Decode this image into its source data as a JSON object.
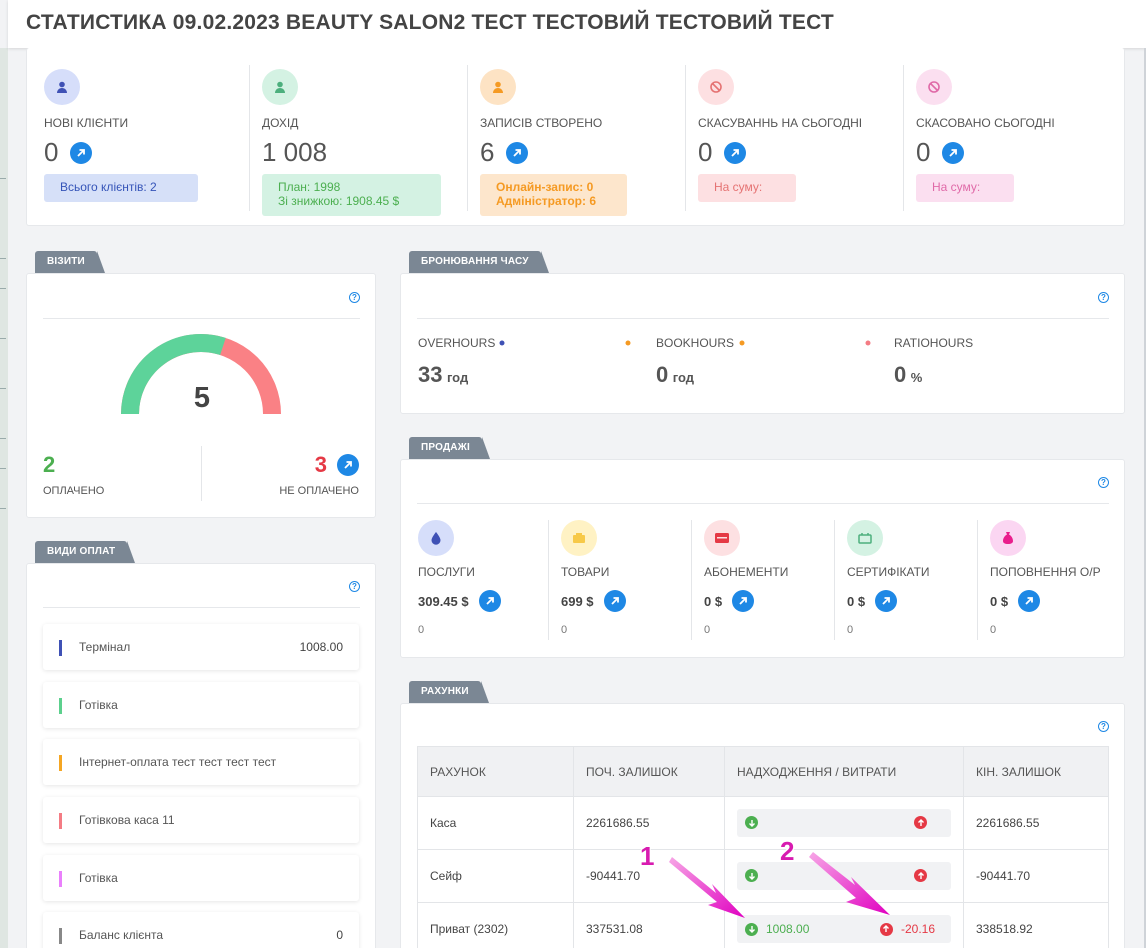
{
  "title": "СТАТИСТИКА 09.02.2023 BEAUTY SALON2 ТЕСТ ТЕСТОВИЙ ТЕСТОВИЙ ТЕСТ",
  "stats": [
    {
      "label": "НОВІ КЛІЄНТИ",
      "value": "0",
      "box": "Всього клієнтів: 2"
    },
    {
      "label": "ДОХІД",
      "value": "1 008",
      "box_line1": "План: 1998",
      "box_line2": "Зі знижкою: 1908.45 $"
    },
    {
      "label": "ЗАПИСІВ СТВОРЕНО",
      "value": "6",
      "box_line1": "Онлайн-запис: 0",
      "box_line2": "Адміністратор: 6"
    },
    {
      "label": "СКАСУВАННЬ НА СЬОГОДНІ",
      "value": "0",
      "box": "На суму:"
    },
    {
      "label": "СКАСОВАНО СЬОГОДНІ",
      "value": "0",
      "box": "На суму:"
    }
  ],
  "visits": {
    "tab": "ВІЗИТИ",
    "total": "5",
    "paid_fraction": 0.4,
    "paid": "2",
    "paid_label": "ОПЛАЧЕНО",
    "unpaid": "3",
    "unpaid_label": "НЕ ОПЛАЧЕНО"
  },
  "payment_types": {
    "tab": "ВИДИ ОПЛАТ",
    "items": [
      {
        "name": "Термінал",
        "amount": "1008.00",
        "color": "#3f51b5"
      },
      {
        "name": "Готівка",
        "amount": "",
        "color": "#5cd08d"
      },
      {
        "name": "Інтернет-оплата тест тест тест тест",
        "amount": "",
        "color": "#f5a623"
      },
      {
        "name": "Готівкова каса 11",
        "amount": "",
        "color": "#f47c84"
      },
      {
        "name": "Готівка",
        "amount": "",
        "color": "#ea80fc"
      },
      {
        "name": "Баланс клієнта",
        "amount": "0",
        "color": "#888888"
      }
    ]
  },
  "booking": {
    "tab": "БРОНЮВАННЯ ЧАСУ",
    "items": [
      {
        "label": "OVERHOURS",
        "value": "33",
        "unit": "год"
      },
      {
        "label": "BOOKHOURS",
        "value": "0",
        "unit": "год"
      },
      {
        "label": "RATIOHOURS",
        "value": "0",
        "unit": "%"
      }
    ]
  },
  "sales": {
    "tab": "ПРОДАЖІ",
    "items": [
      {
        "label": "ПОСЛУГИ",
        "value": "309.45 $",
        "count": "0",
        "icon": "drop-icon"
      },
      {
        "label": "ТОВАРИ",
        "value": "699 $",
        "count": "0",
        "icon": "box-icon"
      },
      {
        "label": "АБОНЕМЕНТИ",
        "value": "0 $",
        "count": "0",
        "icon": "card-icon"
      },
      {
        "label": "СЕРТИФІКАТИ",
        "value": "0 $",
        "count": "0",
        "icon": "ticket-icon"
      },
      {
        "label": "ПОПОВНЕННЯ О/Р",
        "value": "0 $",
        "count": "0",
        "icon": "money-bag-icon"
      }
    ]
  },
  "accounts": {
    "tab": "РАХУНКИ",
    "columns": [
      "РАХУНОК",
      "ПОЧ. ЗАЛИШОК",
      "НАДХОДЖЕННЯ / ВИТРАТИ",
      "КІН. ЗАЛИШОК"
    ],
    "rows": [
      {
        "name": "Каса",
        "start": "2261686.55",
        "in": "",
        "out": "",
        "end": "2261686.55"
      },
      {
        "name": "Сейф",
        "start": "-90441.70",
        "in": "",
        "out": "",
        "end": "-90441.70"
      },
      {
        "name": "Приват (2302)",
        "start": "337531.08",
        "in": "1008.00",
        "out": "-20.16",
        "end": "338518.92"
      }
    ]
  },
  "annotations": [
    "1",
    "2"
  ]
}
